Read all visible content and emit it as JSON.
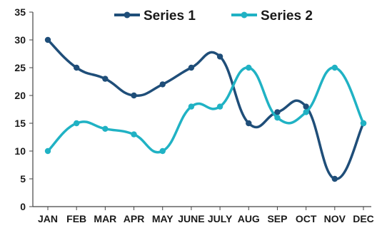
{
  "chart_data": {
    "type": "line",
    "smooth": true,
    "categories": [
      "JAN",
      "FEB",
      "MAR",
      "APR",
      "MAY",
      "JUNE",
      "JULY",
      "AUG",
      "SEP",
      "OCT",
      "NOV",
      "DEC"
    ],
    "series": [
      {
        "name": "Series 1",
        "color": "#1f4e79",
        "values": [
          30,
          25,
          23,
          20,
          22,
          25,
          27,
          15,
          17,
          18,
          5,
          15
        ]
      },
      {
        "name": "Series 2",
        "color": "#20b2c4",
        "values": [
          10,
          15,
          14,
          13,
          10,
          18,
          18,
          25,
          16,
          17,
          25,
          15
        ]
      }
    ],
    "yticks": [
      0,
      5,
      10,
      15,
      20,
      25,
      30,
      35
    ],
    "ylim": [
      0,
      35
    ],
    "grid": false,
    "legend_position": "top"
  }
}
